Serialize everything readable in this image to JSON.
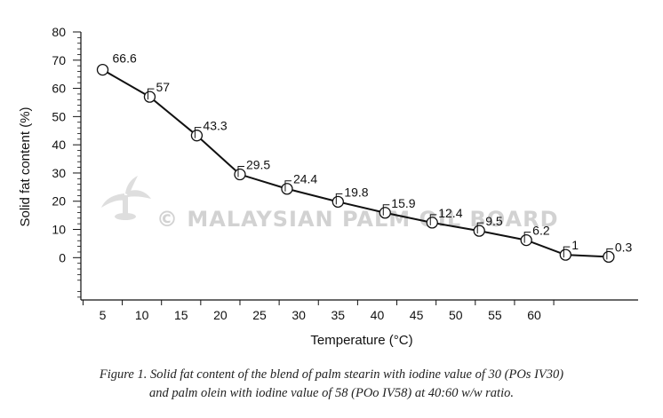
{
  "chart_data": {
    "type": "line",
    "title": "",
    "xlabel": "Temperature (°C)",
    "ylabel": "Solid fat content (%)",
    "x_ticks": [
      5,
      10,
      15,
      20,
      25,
      30,
      35,
      40,
      45,
      50,
      55,
      60
    ],
    "y_ticks": [
      0,
      10,
      20,
      30,
      40,
      50,
      60,
      70,
      80
    ],
    "ylim": [
      -15,
      80
    ],
    "grid": false,
    "series": [
      {
        "x": [
          5,
          11,
          17,
          22.5,
          28.5,
          35,
          41,
          47,
          53,
          59,
          64,
          69.5
        ],
        "values": [
          66.6,
          57,
          43.3,
          29.5,
          24.4,
          19.8,
          15.9,
          12.4,
          9.5,
          6.2,
          1,
          0.3
        ],
        "labels": [
          "66.6",
          "57",
          "43.3",
          "29.5",
          "24.4",
          "19.8",
          "15.9",
          "12.4",
          "9.5",
          "6.2",
          "1",
          "0.3"
        ]
      }
    ]
  },
  "watermark": {
    "text": "© MALAYSIAN PALM OIL BOARD",
    "logo_icon": "palm-tree-logo-icon"
  },
  "caption": {
    "line1": "Figure 1. Solid fat content of the blend of palm stearin with iodine value of 30 (POs IV30)",
    "line2": "and palm olein with iodine value of 58 (POo IV58) at 40:60 w/w ratio."
  }
}
